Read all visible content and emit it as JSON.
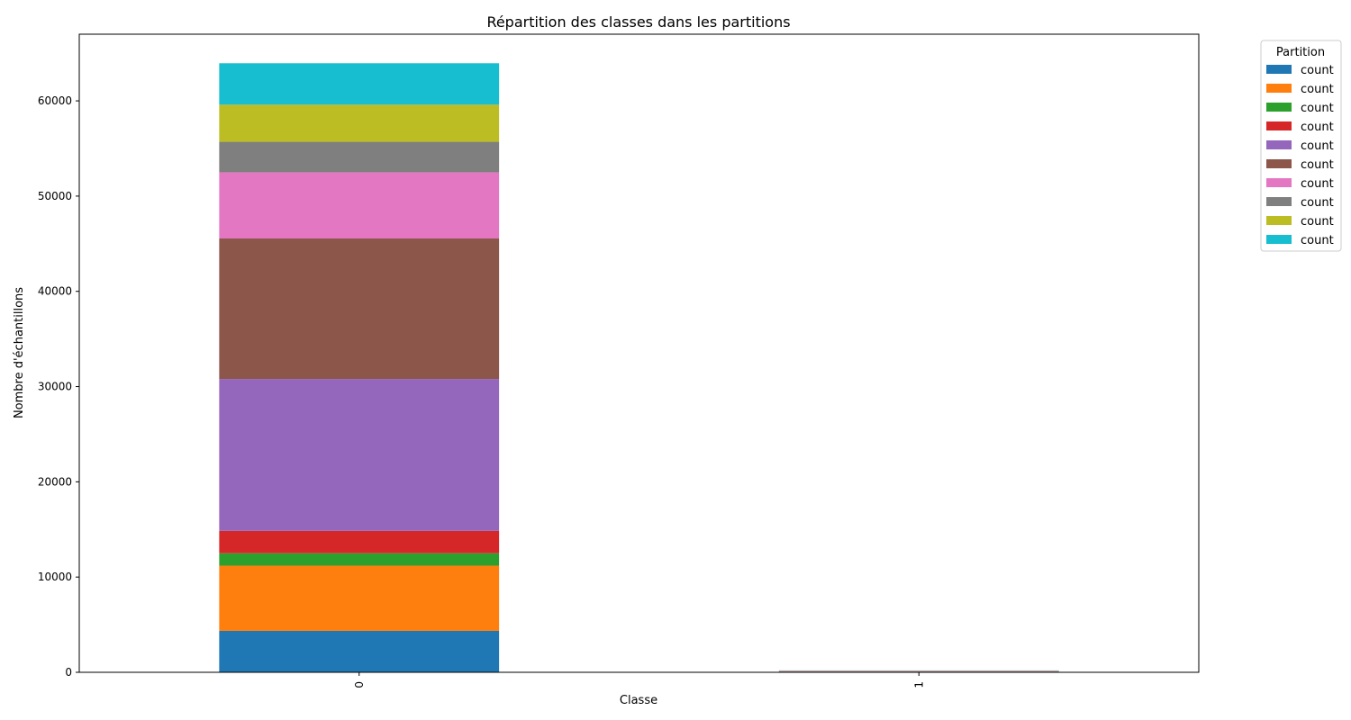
{
  "chart_data": {
    "type": "bar",
    "stacked": true,
    "title": "Répartition des classes dans les partitions",
    "xlabel": "Classe",
    "ylabel": "Nombre d'échantillons",
    "categories": [
      "0",
      "1"
    ],
    "ylim": [
      0,
      67000
    ],
    "yticks": [
      0,
      10000,
      20000,
      30000,
      40000,
      50000,
      60000
    ],
    "yticklabels": [
      "0",
      "10000",
      "20000",
      "30000",
      "40000",
      "50000",
      "60000"
    ],
    "grid": false,
    "legend": {
      "title": "Partition",
      "position": "outside-top-right"
    },
    "series": [
      {
        "name": "count",
        "color": "#1f77b4",
        "values": [
          4350,
          20
        ]
      },
      {
        "name": "count",
        "color": "#ff7f0e",
        "values": [
          6850,
          20
        ]
      },
      {
        "name": "count",
        "color": "#2ca02c",
        "values": [
          1300,
          20
        ]
      },
      {
        "name": "count",
        "color": "#d62728",
        "values": [
          2350,
          20
        ]
      },
      {
        "name": "count",
        "color": "#9467bd",
        "values": [
          15950,
          20
        ]
      },
      {
        "name": "count",
        "color": "#8c564b",
        "values": [
          14750,
          20
        ]
      },
      {
        "name": "count",
        "color": "#e377c2",
        "values": [
          6950,
          20
        ]
      },
      {
        "name": "count",
        "color": "#7f7f7f",
        "values": [
          3200,
          20
        ]
      },
      {
        "name": "count",
        "color": "#bcbd22",
        "values": [
          3900,
          20
        ]
      },
      {
        "name": "count",
        "color": "#17becf",
        "values": [
          4350,
          20
        ]
      }
    ]
  }
}
